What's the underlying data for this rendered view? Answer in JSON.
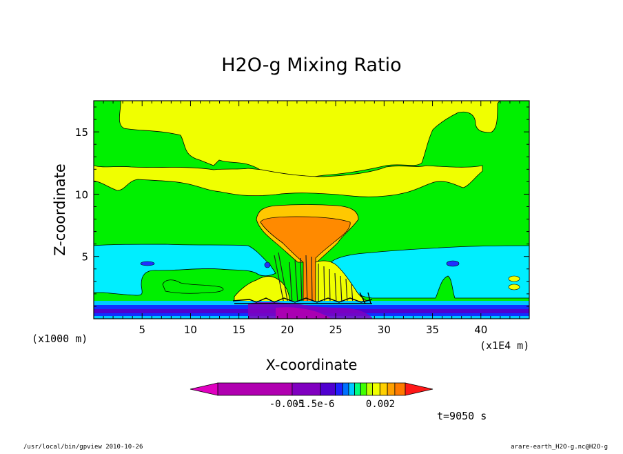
{
  "chart_data": {
    "type": "heatmap",
    "title": "H2O-g Mixing Ratio",
    "xlabel": "X-coordinate",
    "ylabel": "Z-coordinate",
    "x_unit_label": "(x1E4 m)",
    "y_unit_label": "(x1000 m)",
    "xlim": [
      0,
      45
    ],
    "ylim": [
      0,
      17.5
    ],
    "x_ticks": [
      5,
      10,
      15,
      20,
      25,
      30,
      35,
      40
    ],
    "y_ticks": [
      5,
      10,
      15
    ],
    "time_label": "t=9050 s",
    "colorbar": {
      "tick_labels": [
        "-0.005",
        "-1.5e-6",
        "0.002"
      ],
      "colors": [
        "#b000b0",
        "#8000c0",
        "#5000d0",
        "#2020ff",
        "#0070ff",
        "#00c8ff",
        "#00ff80",
        "#40ff00",
        "#c0ff00",
        "#f0ff00",
        "#ffd000",
        "#ffa000",
        "#ff7a00",
        "#ff2000"
      ],
      "under_color": "#e000c0",
      "over_color": "#ff1818"
    }
  },
  "footer": {
    "left": "/usr/local/bin/gpview  2010-10-26",
    "right": "arare-earth_H2O-g.nc@H2O-g"
  }
}
